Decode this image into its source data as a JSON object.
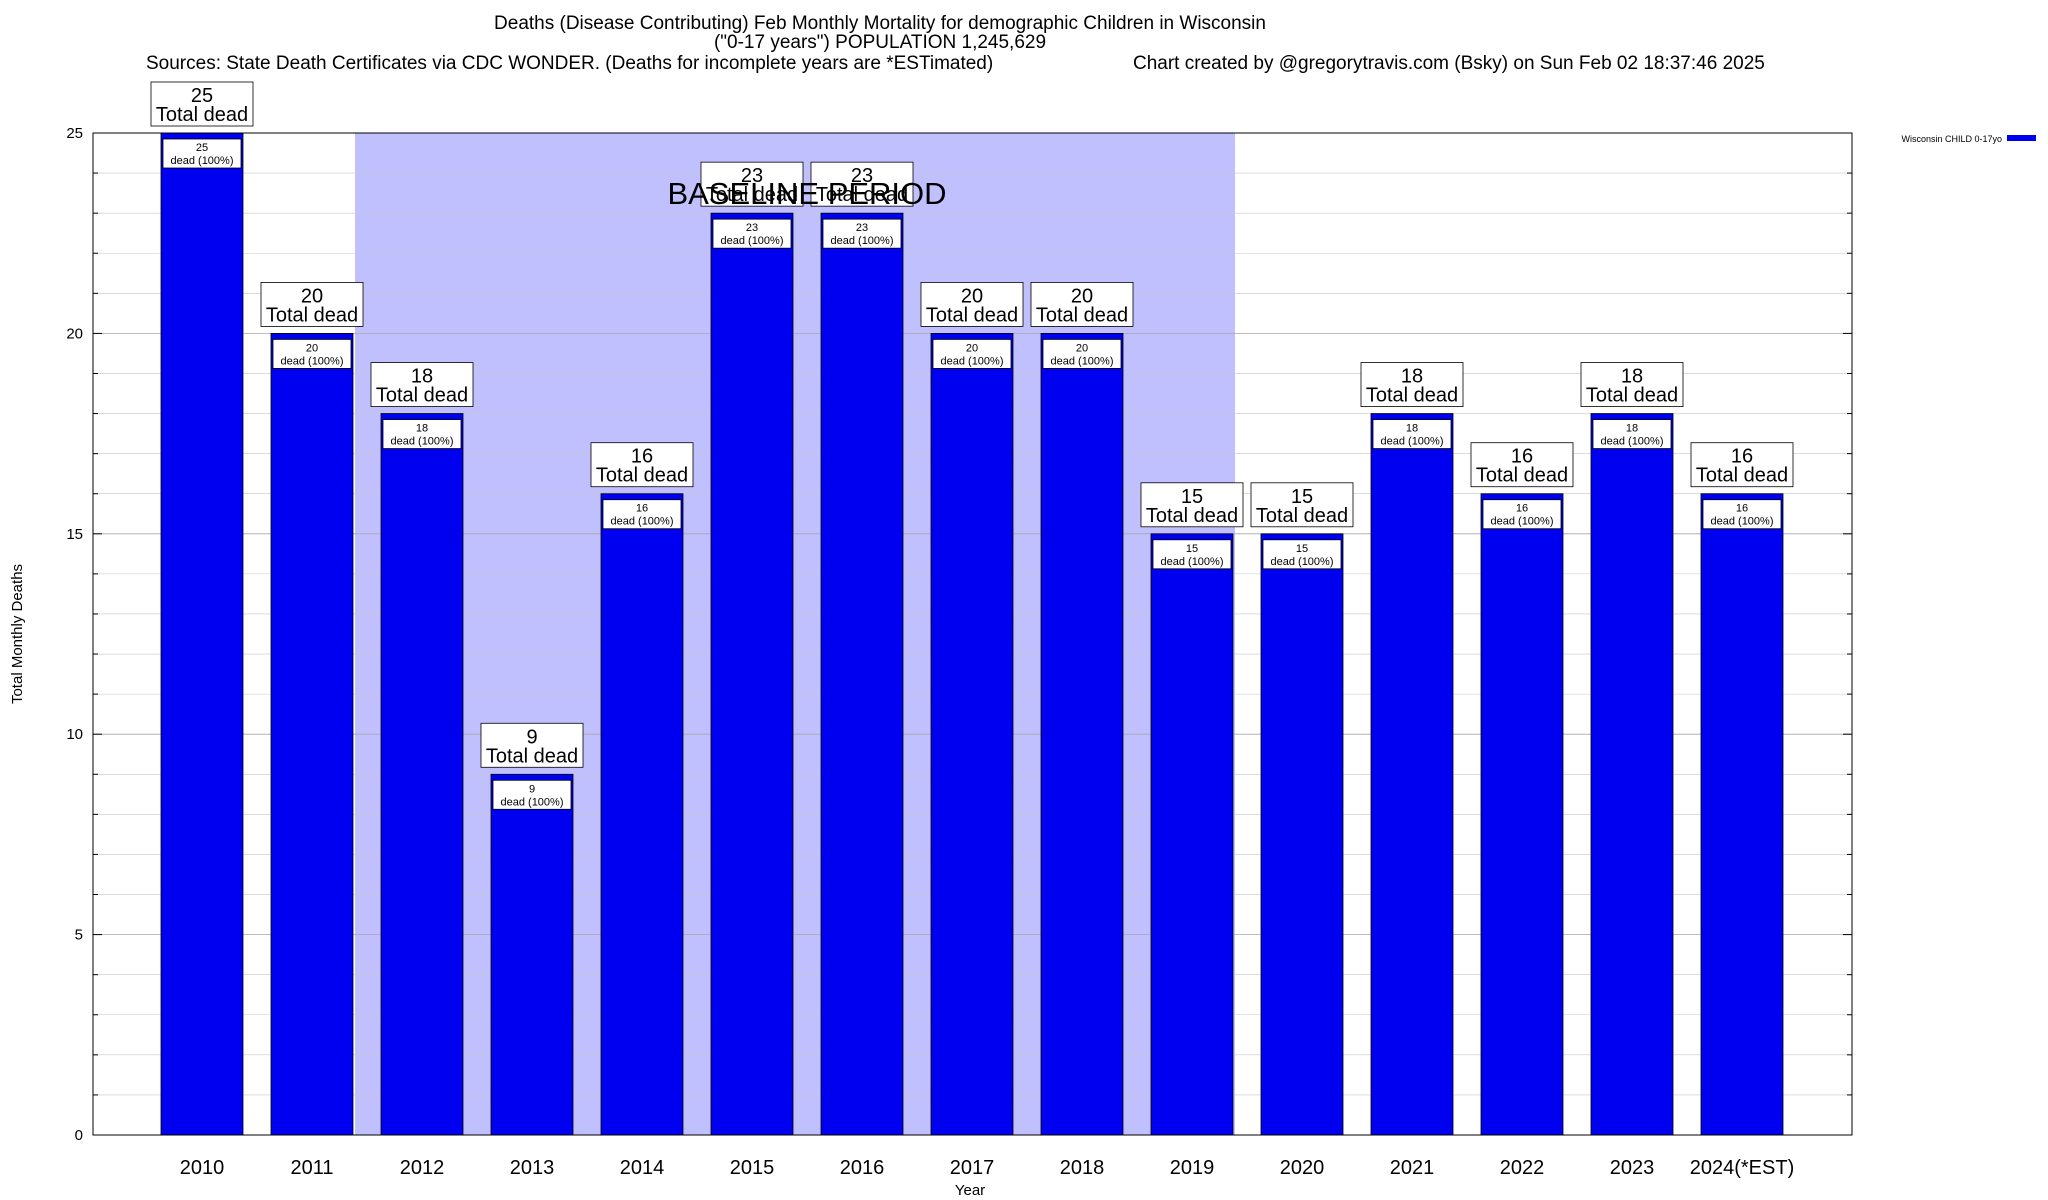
{
  "chart_data": {
    "type": "bar",
    "title": "Deaths (Disease Contributing) Feb Monthly Mortality for demographic Children in Wisconsin",
    "subtitle": "(\"0-17 years\") POPULATION 1,245,629",
    "source_note": "Sources: State Death Certificates via CDC WONDER. (Deaths for incomplete years are *ESTimated)",
    "credit_note": "Chart created by @gregorytravis.com (Bsky) on Sun Feb 02 18:37:46 2025",
    "xlabel": "Year",
    "ylabel": "Total Monthly Deaths",
    "ylim": [
      0,
      25
    ],
    "yticks": [
      0,
      5,
      10,
      15,
      20,
      25
    ],
    "grid": true,
    "legend_position": "top-right",
    "categories": [
      "2010",
      "2011",
      "2012",
      "2013",
      "2014",
      "2015",
      "2016",
      "2017",
      "2018",
      "2019",
      "2020",
      "2021",
      "2022",
      "2023",
      "2024(*EST)"
    ],
    "series": [
      {
        "name": "Wisconsin CHILD 0-17yo",
        "color": "#0000f0",
        "values": [
          25,
          20,
          18,
          9,
          16,
          23,
          23,
          20,
          20,
          15,
          15,
          18,
          16,
          18,
          16
        ],
        "share_labels": [
          "25 dead (100%)",
          "20 dead (100%)",
          "18 dead (100%)",
          "9 dead (100%)",
          "16 dead (100%)",
          "23 dead (100%)",
          "23 dead (100%)",
          "20 dead (100%)",
          "20 dead (100%)",
          "15 dead (100%)",
          "15 dead (100%)",
          "18 dead (100%)",
          "16 dead (100%)",
          "18 dead (100%)",
          "16 dead (100%)"
        ]
      }
    ],
    "total_label_suffix": "Total dead",
    "baseline": {
      "label": "BASELINE PERIOD",
      "from": "2012",
      "to": "2019",
      "color": "#c0c0ff"
    }
  }
}
